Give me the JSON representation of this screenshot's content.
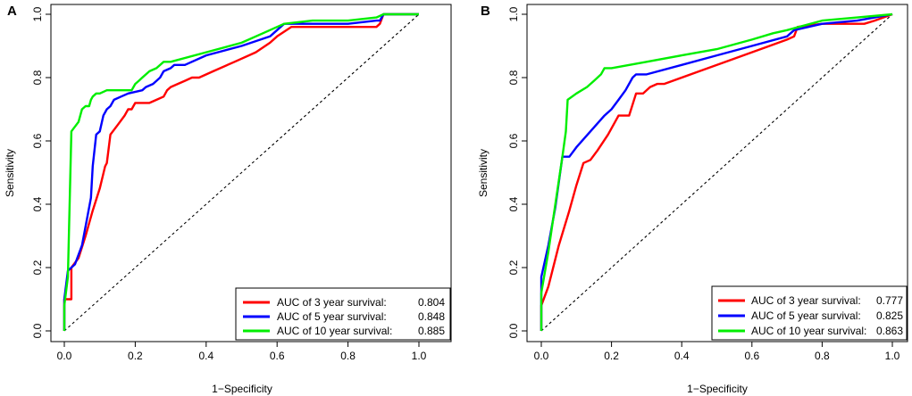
{
  "chart_data": [
    {
      "type": "line",
      "panel_label": "A",
      "xlabel": "1−Specificity",
      "ylabel": "Sensitivity",
      "xlim": [
        0,
        1
      ],
      "ylim": [
        0,
        1
      ],
      "xticks": [
        "0.0",
        "0.2",
        "0.4",
        "0.6",
        "0.8",
        "1.0"
      ],
      "yticks": [
        "0.0",
        "0.2",
        "0.4",
        "0.6",
        "0.8",
        "1.0"
      ],
      "legend_position": "bottom-right",
      "series": [
        {
          "name": "3 year",
          "color": "#ff0000",
          "legend_label": "AUC of 3 year survival:",
          "auc": "0.804",
          "points": [
            [
              0,
              0
            ],
            [
              0,
              0.1
            ],
            [
              0.02,
              0.1
            ],
            [
              0.02,
              0.2
            ],
            [
              0.04,
              0.23
            ],
            [
              0.06,
              0.3
            ],
            [
              0.08,
              0.38
            ],
            [
              0.1,
              0.45
            ],
            [
              0.115,
              0.52
            ],
            [
              0.12,
              0.53
            ],
            [
              0.13,
              0.62
            ],
            [
              0.15,
              0.65
            ],
            [
              0.17,
              0.68
            ],
            [
              0.18,
              0.7
            ],
            [
              0.19,
              0.7
            ],
            [
              0.2,
              0.72
            ],
            [
              0.24,
              0.72
            ],
            [
              0.26,
              0.73
            ],
            [
              0.28,
              0.74
            ],
            [
              0.29,
              0.76
            ],
            [
              0.3,
              0.77
            ],
            [
              0.32,
              0.78
            ],
            [
              0.34,
              0.79
            ],
            [
              0.36,
              0.8
            ],
            [
              0.38,
              0.8
            ],
            [
              0.42,
              0.82
            ],
            [
              0.48,
              0.85
            ],
            [
              0.54,
              0.88
            ],
            [
              0.58,
              0.91
            ],
            [
              0.6,
              0.93
            ],
            [
              0.64,
              0.96
            ],
            [
              0.7,
              0.96
            ],
            [
              0.8,
              0.96
            ],
            [
              0.88,
              0.96
            ],
            [
              0.89,
              0.97
            ],
            [
              0.9,
              1.0
            ],
            [
              1.0,
              1.0
            ]
          ]
        },
        {
          "name": "5 year",
          "color": "#0000ff",
          "legend_label": "AUC of 5 year survival:",
          "auc": "0.848",
          "points": [
            [
              0,
              0
            ],
            [
              0,
              0.1
            ],
            [
              0.01,
              0.19
            ],
            [
              0.03,
              0.21
            ],
            [
              0.05,
              0.27
            ],
            [
              0.06,
              0.33
            ],
            [
              0.075,
              0.42
            ],
            [
              0.08,
              0.52
            ],
            [
              0.09,
              0.62
            ],
            [
              0.1,
              0.63
            ],
            [
              0.11,
              0.68
            ],
            [
              0.12,
              0.7
            ],
            [
              0.13,
              0.71
            ],
            [
              0.14,
              0.73
            ],
            [
              0.16,
              0.74
            ],
            [
              0.18,
              0.75
            ],
            [
              0.22,
              0.76
            ],
            [
              0.23,
              0.77
            ],
            [
              0.25,
              0.78
            ],
            [
              0.26,
              0.79
            ],
            [
              0.27,
              0.8
            ],
            [
              0.28,
              0.82
            ],
            [
              0.3,
              0.83
            ],
            [
              0.31,
              0.84
            ],
            [
              0.34,
              0.84
            ],
            [
              0.4,
              0.87
            ],
            [
              0.5,
              0.9
            ],
            [
              0.58,
              0.93
            ],
            [
              0.62,
              0.97
            ],
            [
              0.7,
              0.97
            ],
            [
              0.8,
              0.97
            ],
            [
              0.88,
              0.98
            ],
            [
              0.89,
              0.98
            ],
            [
              0.9,
              1.0
            ],
            [
              1.0,
              1.0
            ]
          ]
        },
        {
          "name": "10 year",
          "color": "#00ee00",
          "legend_label": "AUC of 10 year survival:",
          "auc": "0.885",
          "points": [
            [
              0,
              0
            ],
            [
              0,
              0.08
            ],
            [
              0.01,
              0.17
            ],
            [
              0.02,
              0.63
            ],
            [
              0.04,
              0.66
            ],
            [
              0.05,
              0.7
            ],
            [
              0.06,
              0.71
            ],
            [
              0.07,
              0.71
            ],
            [
              0.075,
              0.73
            ],
            [
              0.08,
              0.74
            ],
            [
              0.09,
              0.75
            ],
            [
              0.1,
              0.75
            ],
            [
              0.12,
              0.76
            ],
            [
              0.19,
              0.76
            ],
            [
              0.2,
              0.78
            ],
            [
              0.21,
              0.79
            ],
            [
              0.22,
              0.8
            ],
            [
              0.24,
              0.82
            ],
            [
              0.26,
              0.83
            ],
            [
              0.28,
              0.85
            ],
            [
              0.3,
              0.85
            ],
            [
              0.4,
              0.88
            ],
            [
              0.5,
              0.91
            ],
            [
              0.56,
              0.94
            ],
            [
              0.6,
              0.96
            ],
            [
              0.62,
              0.97
            ],
            [
              0.7,
              0.98
            ],
            [
              0.8,
              0.98
            ],
            [
              0.88,
              0.99
            ],
            [
              0.9,
              1.0
            ],
            [
              1.0,
              1.0
            ]
          ]
        }
      ]
    },
    {
      "type": "line",
      "panel_label": "B",
      "xlabel": "1−Specificity",
      "ylabel": "Sensitivity",
      "xlim": [
        0,
        1
      ],
      "ylim": [
        0,
        1
      ],
      "xticks": [
        "0.0",
        "0.2",
        "0.4",
        "0.6",
        "0.8",
        "1.0"
      ],
      "yticks": [
        "0.0",
        "0.2",
        "0.4",
        "0.6",
        "0.8",
        "1.0"
      ],
      "legend_position": "bottom-right",
      "series": [
        {
          "name": "3 year",
          "color": "#ff0000",
          "legend_label": "AUC of 3 year survival:",
          "auc": "0.777",
          "points": [
            [
              0,
              0
            ],
            [
              0,
              0.08
            ],
            [
              0.02,
              0.14
            ],
            [
              0.05,
              0.27
            ],
            [
              0.08,
              0.38
            ],
            [
              0.1,
              0.46
            ],
            [
              0.12,
              0.53
            ],
            [
              0.14,
              0.54
            ],
            [
              0.16,
              0.57
            ],
            [
              0.19,
              0.62
            ],
            [
              0.22,
              0.68
            ],
            [
              0.25,
              0.68
            ],
            [
              0.27,
              0.75
            ],
            [
              0.29,
              0.75
            ],
            [
              0.31,
              0.77
            ],
            [
              0.33,
              0.78
            ],
            [
              0.35,
              0.78
            ],
            [
              0.45,
              0.82
            ],
            [
              0.55,
              0.86
            ],
            [
              0.65,
              0.9
            ],
            [
              0.7,
              0.92
            ],
            [
              0.72,
              0.93
            ],
            [
              0.73,
              0.96
            ],
            [
              0.8,
              0.97
            ],
            [
              0.92,
              0.97
            ],
            [
              0.95,
              0.98
            ],
            [
              1.0,
              1.0
            ]
          ]
        },
        {
          "name": "5 year",
          "color": "#0000ff",
          "legend_label": "AUC of 5 year survival:",
          "auc": "0.825",
          "points": [
            [
              0,
              0
            ],
            [
              0,
              0.17
            ],
            [
              0.02,
              0.27
            ],
            [
              0.04,
              0.39
            ],
            [
              0.06,
              0.55
            ],
            [
              0.08,
              0.55
            ],
            [
              0.1,
              0.58
            ],
            [
              0.14,
              0.63
            ],
            [
              0.18,
              0.68
            ],
            [
              0.2,
              0.7
            ],
            [
              0.22,
              0.73
            ],
            [
              0.24,
              0.76
            ],
            [
              0.26,
              0.8
            ],
            [
              0.27,
              0.81
            ],
            [
              0.3,
              0.81
            ],
            [
              0.4,
              0.84
            ],
            [
              0.5,
              0.87
            ],
            [
              0.6,
              0.9
            ],
            [
              0.7,
              0.93
            ],
            [
              0.72,
              0.95
            ],
            [
              0.8,
              0.97
            ],
            [
              0.9,
              0.98
            ],
            [
              0.95,
              0.99
            ],
            [
              1.0,
              1.0
            ]
          ]
        },
        {
          "name": "10 year",
          "color": "#00ee00",
          "legend_label": "AUC of 10 year survival:",
          "auc": "0.863",
          "points": [
            [
              0,
              0
            ],
            [
              0,
              0.12
            ],
            [
              0.02,
              0.25
            ],
            [
              0.04,
              0.4
            ],
            [
              0.06,
              0.55
            ],
            [
              0.07,
              0.63
            ],
            [
              0.075,
              0.73
            ],
            [
              0.1,
              0.75
            ],
            [
              0.13,
              0.77
            ],
            [
              0.15,
              0.79
            ],
            [
              0.17,
              0.81
            ],
            [
              0.18,
              0.83
            ],
            [
              0.2,
              0.83
            ],
            [
              0.3,
              0.85
            ],
            [
              0.4,
              0.87
            ],
            [
              0.5,
              0.89
            ],
            [
              0.6,
              0.92
            ],
            [
              0.66,
              0.94
            ],
            [
              0.7,
              0.95
            ],
            [
              0.8,
              0.98
            ],
            [
              0.9,
              0.99
            ],
            [
              1.0,
              1.0
            ]
          ]
        }
      ]
    }
  ]
}
